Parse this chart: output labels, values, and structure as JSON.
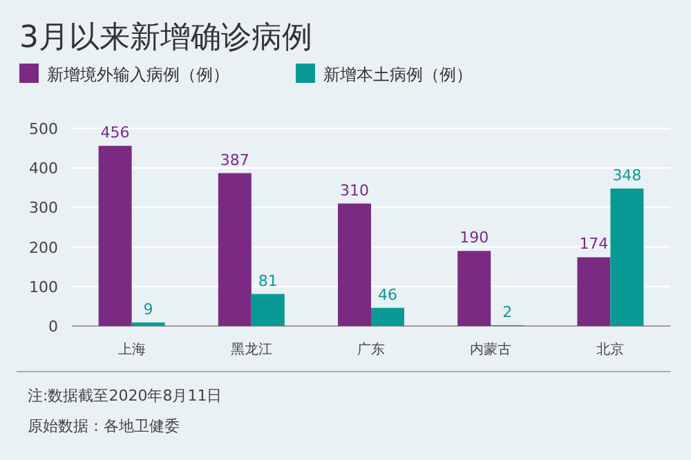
{
  "chart_data": {
    "type": "bar",
    "title": "3月以来新增确诊病例",
    "categories": [
      "上海",
      "黑龙江",
      "广东",
      "内蒙古",
      "北京"
    ],
    "series": [
      {
        "name": "新增境外输入病例（例）",
        "color": "#7b2a83",
        "values": [
          456,
          387,
          310,
          190,
          174
        ]
      },
      {
        "name": "新增本土病例（例）",
        "color": "#0a9a96",
        "values": [
          9,
          81,
          46,
          2,
          348
        ]
      }
    ],
    "ylim": [
      0,
      500
    ],
    "yticks": [
      0,
      100,
      200,
      300,
      400,
      500
    ],
    "grid": "y",
    "legend": "top left",
    "data_labels": true,
    "annotations": [
      "注:数据截至2020年8月11日",
      "原始数据：各地卫健委"
    ]
  }
}
